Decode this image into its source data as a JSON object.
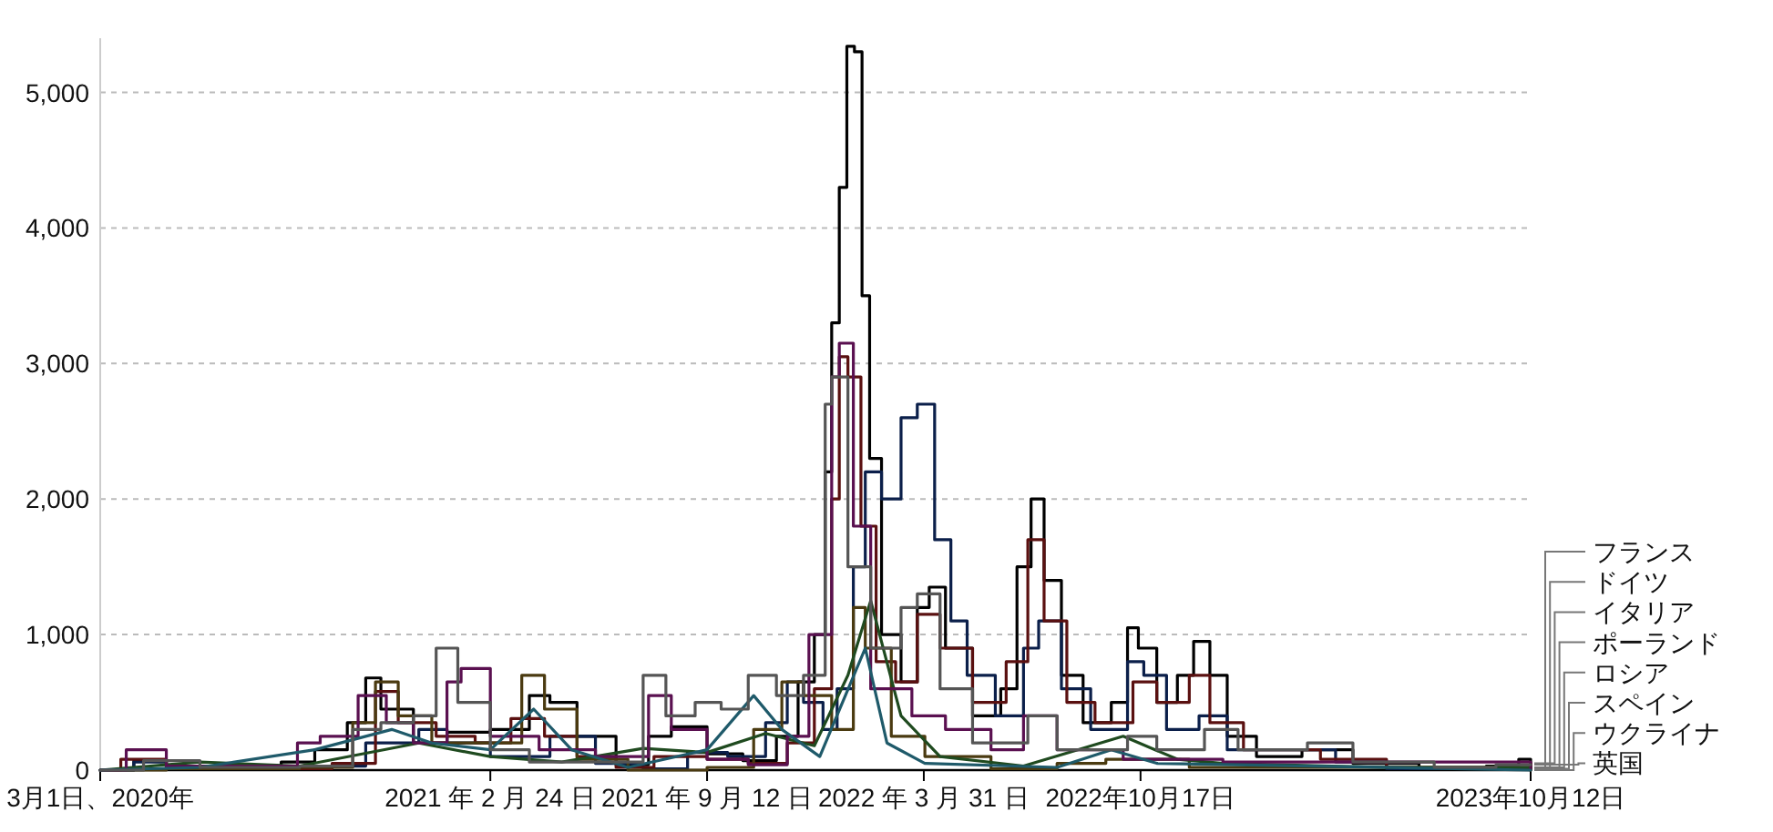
{
  "chart_data": {
    "type": "step",
    "legend": "right",
    "grid": "y",
    "xlim": [
      "2020-03-01",
      "2023-10-12"
    ],
    "ylim": [
      0,
      5400
    ],
    "xticks": [
      {
        "value": "2020-03-01",
        "label": "3月1日、2020年"
      },
      {
        "value": "2021-02-24",
        "label": "2021 年 2 月 24 日"
      },
      {
        "value": "2021-09-12",
        "label": "2021 年 9 月 12 日"
      },
      {
        "value": "2022-03-31",
        "label": "2022 年 3 月 31 日"
      },
      {
        "value": "2022-10-17",
        "label": "2022年10月17日"
      },
      {
        "value": "2023-10-12",
        "label": "2023年10月12日"
      }
    ],
    "yticks": [
      0,
      {
        "value": 1000,
        "label": "1,000"
      },
      {
        "value": 2000,
        "label": "2,000"
      },
      {
        "value": 3000,
        "label": "3,000"
      },
      {
        "value": 4000,
        "label": "4,000"
      },
      {
        "value": 5000,
        "label": "5,000"
      }
    ],
    "series": [
      {
        "name": "フランス",
        "color": "#000000",
        "x": [
          "2020-03-01",
          "2020-04-01",
          "2020-05-01",
          "2020-07-01",
          "2020-08-15",
          "2020-09-15",
          "2020-10-15",
          "2020-11-01",
          "2020-11-15",
          "2020-12-15",
          "2021-01-15",
          "2021-02-24",
          "2021-04-01",
          "2021-04-20",
          "2021-05-15",
          "2021-06-20",
          "2021-07-20",
          "2021-08-10",
          "2021-09-12",
          "2021-10-15",
          "2021-11-15",
          "2021-12-05",
          "2021-12-20",
          "2021-12-30",
          "2022-01-05",
          "2022-01-12",
          "2022-01-19",
          "2022-01-26",
          "2022-02-02",
          "2022-02-09",
          "2022-02-20",
          "2022-03-10",
          "2022-03-25",
          "2022-04-05",
          "2022-04-20",
          "2022-05-15",
          "2022-06-10",
          "2022-06-25",
          "2022-07-08",
          "2022-07-20",
          "2022-08-05",
          "2022-08-25",
          "2022-09-20",
          "2022-10-05",
          "2022-10-15",
          "2022-11-01",
          "2022-11-20",
          "2022-12-05",
          "2022-12-20",
          "2023-01-05",
          "2023-02-01",
          "2023-03-15",
          "2023-05-01",
          "2023-07-01",
          "2023-09-01",
          "2023-10-01",
          "2023-10-12"
        ],
        "values": [
          0,
          70,
          20,
          10,
          60,
          150,
          350,
          680,
          450,
          200,
          280,
          300,
          550,
          500,
          250,
          40,
          250,
          320,
          120,
          70,
          250,
          650,
          1000,
          2200,
          3300,
          4300,
          5340,
          5300,
          3500,
          2300,
          1000,
          650,
          1200,
          1350,
          900,
          400,
          600,
          1500,
          2000,
          1400,
          700,
          350,
          500,
          1050,
          900,
          500,
          700,
          950,
          700,
          250,
          100,
          150,
          50,
          10,
          30,
          80,
          0
        ]
      },
      {
        "name": "ドイツ",
        "color": "#0b1f4a",
        "x": [
          "2020-03-01",
          "2020-04-01",
          "2020-05-01",
          "2020-08-01",
          "2020-10-01",
          "2020-11-01",
          "2020-12-20",
          "2021-01-15",
          "2021-02-24",
          "2021-04-20",
          "2021-06-01",
          "2021-07-15",
          "2021-08-25",
          "2021-10-01",
          "2021-11-05",
          "2021-11-25",
          "2021-12-10",
          "2021-12-28",
          "2022-01-10",
          "2022-01-25",
          "2022-02-05",
          "2022-02-20",
          "2022-03-10",
          "2022-03-25",
          "2022-04-10",
          "2022-04-25",
          "2022-05-10",
          "2022-06-05",
          "2022-07-01",
          "2022-07-15",
          "2022-08-05",
          "2022-09-01",
          "2022-10-05",
          "2022-10-20",
          "2022-11-10",
          "2022-12-10",
          "2023-01-05",
          "2023-03-01",
          "2023-04-15",
          "2023-06-01",
          "2023-10-12"
        ],
        "values": [
          0,
          60,
          20,
          20,
          30,
          200,
          300,
          200,
          100,
          250,
          50,
          10,
          130,
          100,
          350,
          650,
          500,
          300,
          600,
          1500,
          2200,
          2000,
          2600,
          2700,
          1700,
          1100,
          700,
          400,
          900,
          1100,
          600,
          300,
          800,
          700,
          300,
          400,
          150,
          150,
          60,
          10,
          20
        ]
      },
      {
        "name": "イタリア",
        "color": "#5a1010",
        "x": [
          "2020-03-01",
          "2020-03-20",
          "2020-05-01",
          "2020-08-01",
          "2020-10-01",
          "2020-11-10",
          "2020-12-01",
          "2021-01-05",
          "2021-02-10",
          "2021-03-15",
          "2021-04-15",
          "2021-05-15",
          "2021-06-20",
          "2021-07-25",
          "2021-09-12",
          "2021-10-20",
          "2021-11-25",
          "2021-12-20",
          "2022-01-05",
          "2022-01-12",
          "2022-01-20",
          "2022-02-01",
          "2022-02-15",
          "2022-03-05",
          "2022-03-25",
          "2022-04-15",
          "2022-05-15",
          "2022-06-15",
          "2022-07-05",
          "2022-07-20",
          "2022-08-10",
          "2022-09-05",
          "2022-10-10",
          "2022-11-01",
          "2022-12-01",
          "2022-12-20",
          "2023-01-20",
          "2023-04-01",
          "2023-06-01",
          "2023-10-12"
        ],
        "values": [
          0,
          80,
          20,
          10,
          50,
          580,
          350,
          250,
          200,
          380,
          250,
          100,
          20,
          100,
          80,
          50,
          200,
          600,
          2000,
          3050,
          2900,
          1800,
          800,
          650,
          1150,
          900,
          500,
          800,
          1700,
          1100,
          500,
          350,
          650,
          500,
          700,
          350,
          150,
          80,
          20,
          50
        ]
      },
      {
        "name": "ポーランド",
        "color": "#4a3a10",
        "x": [
          "2020-03-01",
          "2020-05-01",
          "2020-09-01",
          "2020-10-20",
          "2020-11-10",
          "2020-12-01",
          "2021-01-01",
          "2021-02-24",
          "2021-03-25",
          "2021-04-15",
          "2021-05-15",
          "2021-07-01",
          "2021-09-12",
          "2021-10-25",
          "2021-11-20",
          "2021-12-10",
          "2022-01-05",
          "2022-01-25",
          "2022-02-05",
          "2022-03-01",
          "2022-04-01",
          "2022-06-01",
          "2022-08-01",
          "2022-09-15",
          "2022-12-01",
          "2023-10-12"
        ],
        "values": [
          0,
          10,
          20,
          350,
          650,
          400,
          200,
          200,
          700,
          450,
          80,
          0,
          20,
          300,
          650,
          550,
          300,
          1200,
          900,
          250,
          100,
          10,
          50,
          80,
          20,
          0
        ]
      },
      {
        "name": "ロシア",
        "type": "line",
        "color": "#1f4a1f",
        "x": [
          "2020-03-01",
          "2020-06-01",
          "2020-09-01",
          "2020-12-20",
          "2021-02-24",
          "2021-05-01",
          "2021-07-15",
          "2021-09-12",
          "2021-11-05",
          "2021-12-20",
          "2022-01-20",
          "2022-02-10",
          "2022-03-10",
          "2022-04-15",
          "2022-07-01",
          "2022-08-20",
          "2022-10-01",
          "2022-11-20",
          "2023-01-01",
          "2023-06-01",
          "2023-10-12"
        ],
        "values": [
          0,
          60,
          30,
          200,
          100,
          60,
          160,
          130,
          270,
          180,
          700,
          1250,
          400,
          100,
          30,
          150,
          250,
          80,
          50,
          20,
          20
        ]
      },
      {
        "name": "スペイン",
        "color": "#5a1050",
        "x": [
          "2020-03-01",
          "2020-03-25",
          "2020-05-01",
          "2020-07-15",
          "2020-08-30",
          "2020-09-20",
          "2020-10-25",
          "2020-11-20",
          "2020-12-15",
          "2021-01-15",
          "2021-01-28",
          "2021-02-24",
          "2021-04-10",
          "2021-06-01",
          "2021-07-20",
          "2021-08-10",
          "2021-09-12",
          "2021-10-20",
          "2021-11-25",
          "2021-12-15",
          "2022-01-05",
          "2022-01-12",
          "2022-01-25",
          "2022-02-10",
          "2022-03-20",
          "2022-04-20",
          "2022-06-01",
          "2022-07-01",
          "2022-08-01",
          "2022-10-01",
          "2023-01-01",
          "2023-10-12"
        ],
        "values": [
          0,
          150,
          30,
          30,
          200,
          250,
          550,
          350,
          200,
          650,
          750,
          250,
          150,
          100,
          550,
          300,
          80,
          40,
          250,
          1000,
          2900,
          3150,
          1800,
          600,
          400,
          300,
          150,
          400,
          150,
          80,
          60,
          10
        ]
      },
      {
        "name": "ウクライナ",
        "type": "line",
        "color": "#1f5a6a",
        "x": [
          "2020-03-01",
          "2020-06-01",
          "2020-09-15",
          "2020-11-25",
          "2021-01-01",
          "2021-02-24",
          "2021-04-05",
          "2021-05-10",
          "2021-07-01",
          "2021-09-12",
          "2021-10-25",
          "2021-11-20",
          "2021-12-25",
          "2022-02-05",
          "2022-02-25",
          "2022-04-01",
          "2022-08-01",
          "2022-09-20",
          "2022-11-01",
          "2023-10-12"
        ],
        "values": [
          0,
          20,
          150,
          300,
          200,
          150,
          450,
          150,
          20,
          150,
          550,
          300,
          100,
          900,
          200,
          50,
          20,
          150,
          50,
          0
        ]
      },
      {
        "name": "英国",
        "color": "#555555",
        "x": [
          "2020-03-01",
          "2020-04-10",
          "2020-06-01",
          "2020-09-01",
          "2020-10-20",
          "2020-11-15",
          "2020-12-15",
          "2021-01-05",
          "2021-01-25",
          "2021-02-24",
          "2021-04-01",
          "2021-06-01",
          "2021-07-15",
          "2021-08-05",
          "2021-09-01",
          "2021-09-25",
          "2021-10-20",
          "2021-11-15",
          "2021-12-10",
          "2021-12-30",
          "2022-01-05",
          "2022-01-20",
          "2022-02-10",
          "2022-03-10",
          "2022-03-25",
          "2022-04-15",
          "2022-05-15",
          "2022-07-05",
          "2022-08-01",
          "2022-10-05",
          "2022-11-01",
          "2022-12-15",
          "2023-01-15",
          "2023-03-20",
          "2023-05-01",
          "2023-07-15",
          "2023-09-10",
          "2023-10-12"
        ],
        "values": [
          0,
          70,
          20,
          30,
          300,
          350,
          400,
          900,
          500,
          150,
          60,
          60,
          700,
          400,
          500,
          450,
          700,
          550,
          700,
          2700,
          2900,
          1500,
          900,
          1200,
          1300,
          600,
          200,
          400,
          150,
          250,
          150,
          300,
          150,
          200,
          60,
          20,
          40,
          40
        ]
      }
    ]
  }
}
